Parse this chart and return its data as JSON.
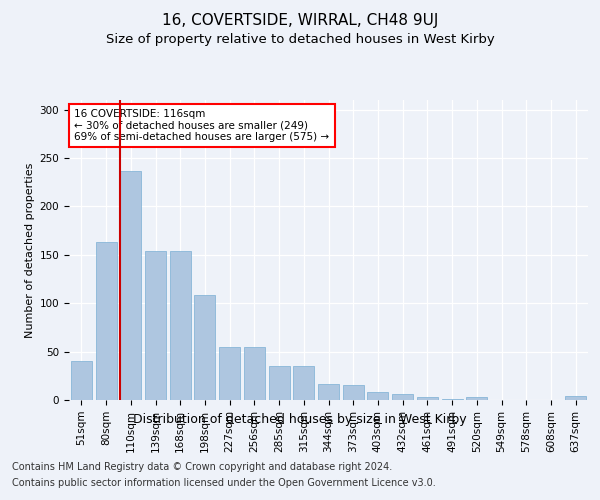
{
  "title": "16, COVERTSIDE, WIRRAL, CH48 9UJ",
  "subtitle": "Size of property relative to detached houses in West Kirby",
  "xlabel": "Distribution of detached houses by size in West Kirby",
  "ylabel": "Number of detached properties",
  "categories": [
    "51sqm",
    "80sqm",
    "110sqm",
    "139sqm",
    "168sqm",
    "198sqm",
    "227sqm",
    "256sqm",
    "285sqm",
    "315sqm",
    "344sqm",
    "373sqm",
    "403sqm",
    "432sqm",
    "461sqm",
    "491sqm",
    "520sqm",
    "549sqm",
    "578sqm",
    "608sqm",
    "637sqm"
  ],
  "values": [
    40,
    163,
    237,
    154,
    154,
    109,
    55,
    55,
    35,
    35,
    17,
    15,
    8,
    6,
    3,
    1,
    3,
    0,
    0,
    0,
    4
  ],
  "bar_color": "#aec6e0",
  "bar_edge_color": "#7aafd4",
  "highlight_bar_index": 2,
  "highlight_color": "#cc0000",
  "annotation_text": "16 COVERTSIDE: 116sqm\n← 30% of detached houses are smaller (249)\n69% of semi-detached houses are larger (575) →",
  "footer_line1": "Contains HM Land Registry data © Crown copyright and database right 2024.",
  "footer_line2": "Contains public sector information licensed under the Open Government Licence v3.0.",
  "ylim": [
    0,
    310
  ],
  "yticks": [
    0,
    50,
    100,
    150,
    200,
    250,
    300
  ],
  "background_color": "#eef2f9",
  "plot_bg_color": "#eef2f9",
  "title_fontsize": 11,
  "subtitle_fontsize": 9.5,
  "xlabel_fontsize": 9,
  "ylabel_fontsize": 8,
  "tick_fontsize": 7.5,
  "footer_fontsize": 7,
  "annotation_fontsize": 7.5
}
